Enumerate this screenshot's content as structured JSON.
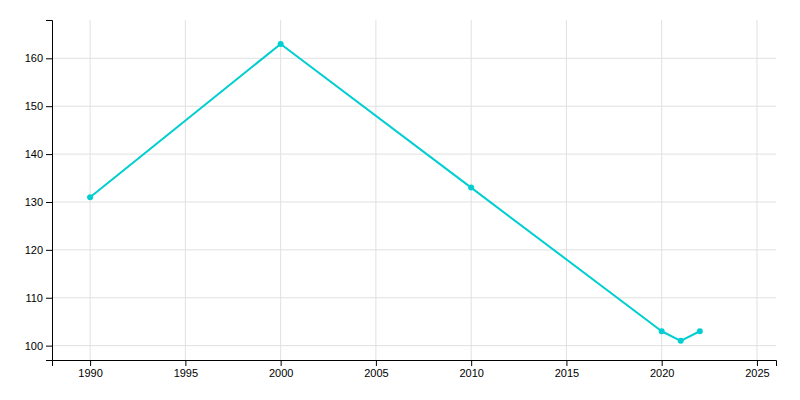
{
  "chart_data": {
    "type": "line",
    "x": [
      1990,
      2000,
      2010,
      2020,
      2021,
      2022
    ],
    "values": [
      131,
      163,
      133,
      103,
      101,
      103
    ],
    "color": "#00CED1",
    "marker": "circle",
    "xlim": [
      1988,
      2026
    ],
    "ylim": [
      97,
      168
    ],
    "xticks": [
      1990,
      1995,
      2000,
      2005,
      2010,
      2015,
      2020,
      2025
    ],
    "yticks": [
      100,
      110,
      120,
      130,
      140,
      150,
      160
    ],
    "grid": true
  }
}
